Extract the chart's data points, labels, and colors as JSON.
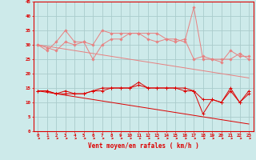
{
  "x": [
    0,
    1,
    2,
    3,
    4,
    5,
    6,
    7,
    8,
    9,
    10,
    11,
    12,
    13,
    14,
    15,
    16,
    17,
    18,
    19,
    20,
    21,
    22,
    23
  ],
  "line_rafales1": [
    30,
    28,
    31,
    35,
    31,
    31,
    25,
    30,
    32,
    32,
    34,
    34,
    34,
    34,
    32,
    32,
    31,
    43,
    25,
    25,
    25,
    25,
    27,
    25
  ],
  "line_rafales2": [
    30,
    29,
    28,
    31,
    30,
    31,
    30,
    35,
    34,
    34,
    34,
    34,
    32,
    31,
    32,
    31,
    32,
    25,
    26,
    25,
    24,
    28,
    26,
    26
  ],
  "line_trend_light": [
    30,
    29.5,
    29,
    28.5,
    28,
    27.5,
    27,
    26.5,
    26,
    25.5,
    25,
    24.5,
    24,
    23.5,
    23,
    22.5,
    22,
    21.5,
    21,
    20.5,
    20,
    19.5,
    19,
    18.5
  ],
  "line_moyen1": [
    14,
    14,
    13,
    14,
    13,
    13,
    14,
    15,
    15,
    15,
    15,
    17,
    15,
    15,
    15,
    15,
    15,
    14,
    6,
    11,
    10,
    15,
    10,
    14
  ],
  "line_moyen2": [
    14,
    14,
    13,
    13,
    13,
    13,
    14,
    14,
    15,
    15,
    15,
    16,
    15,
    15,
    15,
    15,
    14,
    14,
    11,
    11,
    10,
    14,
    10,
    13
  ],
  "line_trend_dark": [
    14,
    13.5,
    13,
    12.5,
    12,
    11.5,
    11,
    10.5,
    10,
    9.5,
    9,
    8.5,
    8,
    7.5,
    7,
    6.5,
    6,
    5.5,
    5,
    4.5,
    4,
    3.5,
    3,
    2.5
  ],
  "xlabel": "Vent moyen/en rafales ( km/h )",
  "ylim": [
    0,
    45
  ],
  "yticks": [
    0,
    5,
    10,
    15,
    20,
    25,
    30,
    35,
    40,
    45
  ],
  "xticks": [
    0,
    1,
    2,
    3,
    4,
    5,
    6,
    7,
    8,
    9,
    10,
    11,
    12,
    13,
    14,
    15,
    16,
    17,
    18,
    19,
    20,
    21,
    22,
    23
  ],
  "bg_color": "#cdeaea",
  "grid_color": "#aacccc",
  "color_light": "#e88080",
  "color_dark": "#dd0000",
  "color_mid": "#dd0000"
}
